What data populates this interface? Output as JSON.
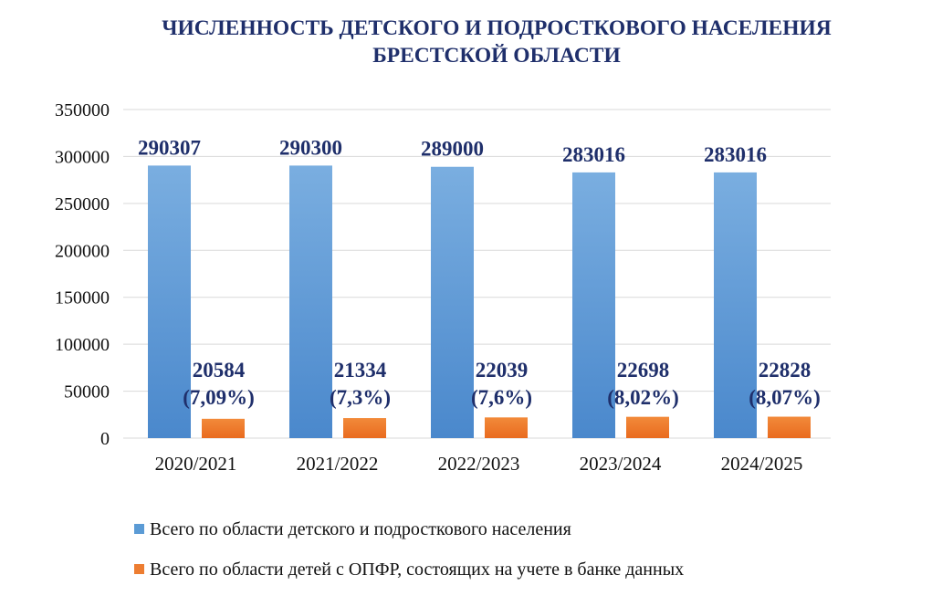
{
  "chart_data": {
    "type": "bar",
    "title_lines": [
      "ЧИСЛЕННОСТЬ ДЕТСКОГО И ПОДРОСТКОВОГО НАСЕЛЕНИЯ",
      "БРЕСТСКОЙ ОБЛАСТИ"
    ],
    "categories": [
      "2020/2021",
      "2021/2022",
      "2022/2023",
      "2023/2024",
      "2024/2025"
    ],
    "series": [
      {
        "name": "Всего по области детского и подросткового населения",
        "values": [
          290307,
          290300,
          289000,
          283016,
          283016
        ],
        "labels": [
          "290307",
          "290300",
          "289000",
          "283016",
          "283016"
        ],
        "color": "#5b9bd5"
      },
      {
        "name": "Всего по области детей с ОПФР, состоящих на учете в банке данных",
        "values": [
          20584,
          21334,
          22039,
          22698,
          22828
        ],
        "labels": [
          "20584",
          "21334",
          "22039",
          "22698",
          "22828"
        ],
        "percent_labels": [
          "(7,09%)",
          "(7,3%)",
          "(7,6%)",
          "(8,02%)",
          "(8,07%)"
        ],
        "color": "#ed7d31"
      }
    ],
    "ylim": [
      0,
      350000
    ],
    "yticks": [
      "0",
      "50000",
      "100000",
      "150000",
      "200000",
      "250000",
      "300000",
      "350000"
    ],
    "grid": true,
    "legend_position": "bottom-left"
  }
}
